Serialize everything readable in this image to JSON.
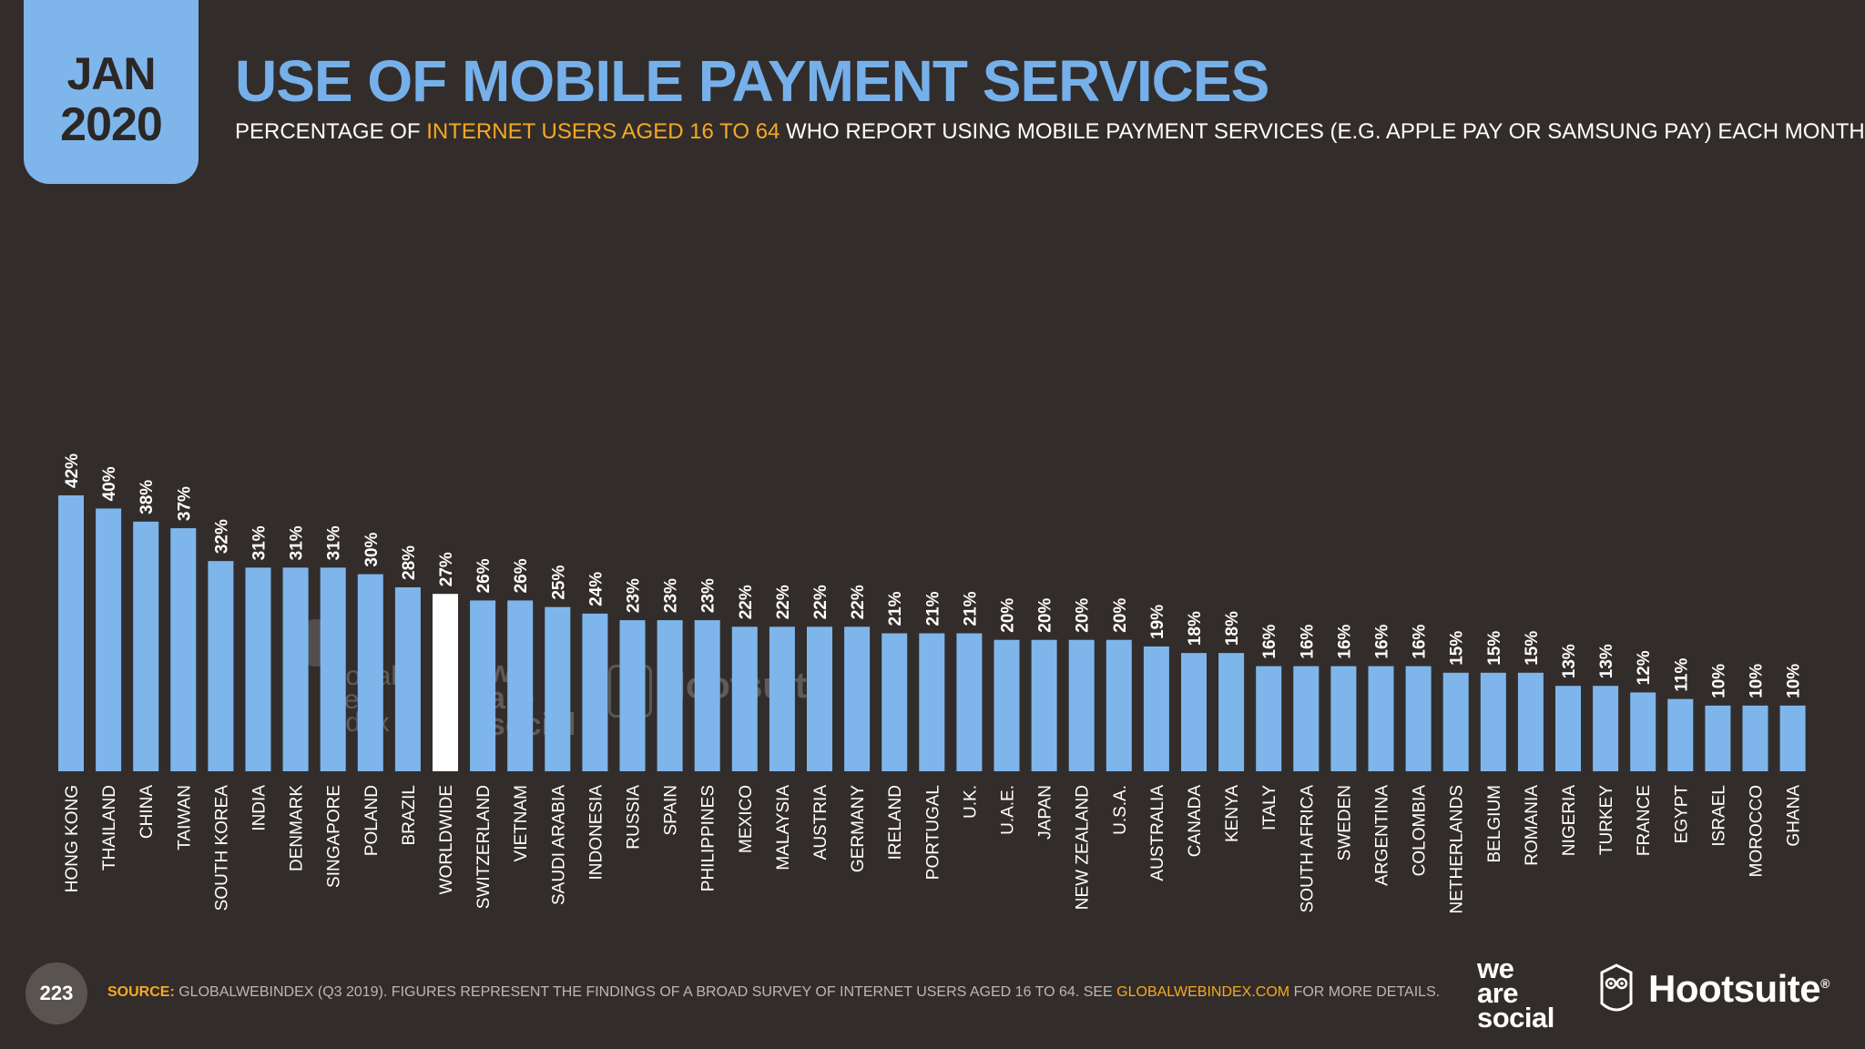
{
  "header": {
    "month": "JAN",
    "year": "2020",
    "title": "USE OF MOBILE PAYMENT SERVICES",
    "subtitle_pre": "PERCENTAGE OF ",
    "subtitle_highlight": "INTERNET USERS AGED 16 TO 64",
    "subtitle_post": " WHO REPORT USING MOBILE PAYMENT SERVICES (E.G. APPLE PAY OR SAMSUNG PAY) EACH MONTH"
  },
  "colors": {
    "background": "#322d2b",
    "bar": "#7eb6ec",
    "highlight_bar": "#ffffff",
    "accent": "#f7a823",
    "title": "#76b0ea"
  },
  "chart_data": {
    "type": "bar",
    "title": "USE OF MOBILE PAYMENT SERVICES",
    "xlabel": "",
    "ylabel": "",
    "ylim": [
      0,
      42
    ],
    "value_suffix": "%",
    "highlight_category": "WORLDWIDE",
    "categories": [
      "HONG KONG",
      "THAILAND",
      "CHINA",
      "TAIWAN",
      "SOUTH KOREA",
      "INDIA",
      "DENMARK",
      "SINGAPORE",
      "POLAND",
      "BRAZIL",
      "WORLDWIDE",
      "SWITZERLAND",
      "VIETNAM",
      "SAUDI ARABIA",
      "INDONESIA",
      "RUSSIA",
      "SPAIN",
      "PHILIPPINES",
      "MEXICO",
      "MALAYSIA",
      "AUSTRIA",
      "GERMANY",
      "IRELAND",
      "PORTUGAL",
      "U.K.",
      "U.A.E.",
      "JAPAN",
      "NEW ZEALAND",
      "U.S.A.",
      "AUSTRALIA",
      "CANADA",
      "KENYA",
      "ITALY",
      "SOUTH AFRICA",
      "SWEDEN",
      "ARGENTINA",
      "COLOMBIA",
      "NETHERLANDS",
      "BELGIUM",
      "ROMANIA",
      "NIGERIA",
      "TURKEY",
      "FRANCE",
      "EGYPT",
      "ISRAEL",
      "MOROCCO",
      "GHANA"
    ],
    "values": [
      42,
      40,
      38,
      37,
      32,
      31,
      31,
      31,
      30,
      28,
      27,
      26,
      26,
      25,
      24,
      23,
      23,
      23,
      22,
      22,
      22,
      22,
      21,
      21,
      21,
      20,
      20,
      20,
      20,
      19,
      18,
      18,
      16,
      16,
      16,
      16,
      16,
      15,
      15,
      15,
      13,
      13,
      12,
      11,
      10,
      10,
      10
    ]
  },
  "watermarks": {
    "gwi_line1": "global",
    "gwi_line2": "web",
    "gwi_line3": "index",
    "was_line1": "we",
    "was_line2": "are",
    "was_line3": "social",
    "hootsuite": "Hootsuite"
  },
  "footer": {
    "page_number": "223",
    "source_label": "SOURCE:",
    "source_text": " GLOBALWEBINDEX (Q3 2019). FIGURES REPRESENT THE FINDINGS OF A BROAD SURVEY OF INTERNET USERS AGED 16 TO 64. SEE ",
    "source_link": "GLOBALWEBINDEX.COM",
    "source_tail": " FOR MORE DETAILS."
  },
  "logos": {
    "was_line1": "we",
    "was_line2": "are",
    "was_line3": "social",
    "hootsuite": "Hootsuite",
    "hootsuite_reg": "®"
  }
}
